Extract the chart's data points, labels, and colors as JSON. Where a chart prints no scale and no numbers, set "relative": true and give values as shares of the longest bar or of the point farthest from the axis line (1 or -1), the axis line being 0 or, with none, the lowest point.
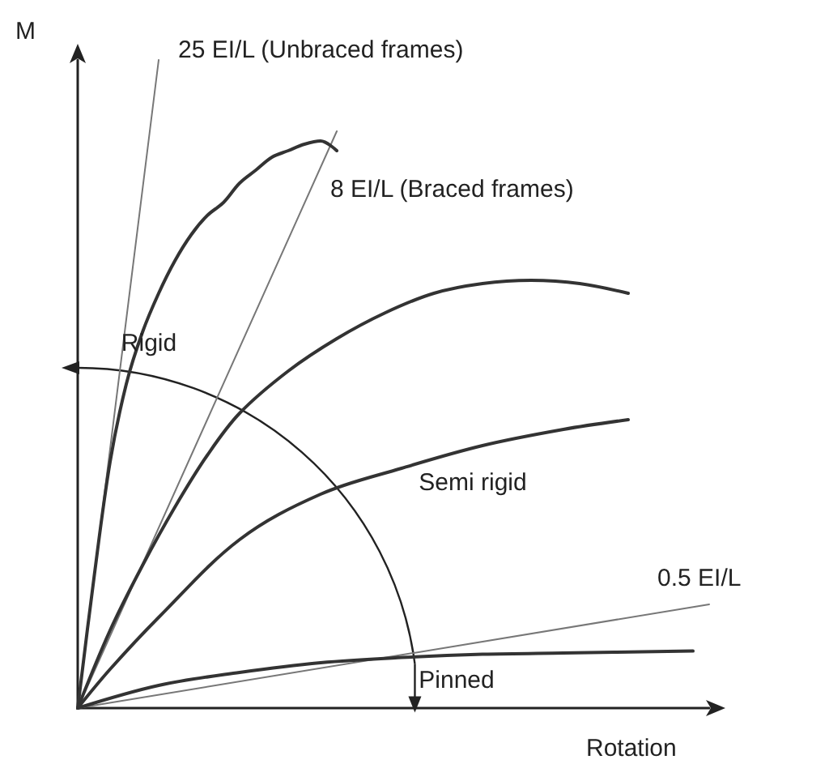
{
  "chart_data": {
    "type": "line",
    "relative": true,
    "xlabel": "Rotation",
    "ylabel": "M",
    "marker": "none",
    "grid": false,
    "legend": false,
    "categories": [
      null,
      null,
      null,
      null,
      null,
      null,
      null,
      null,
      null,
      null,
      null,
      null,
      null,
      null,
      null,
      null,
      null,
      null,
      null,
      null,
      null,
      null,
      null,
      null,
      null,
      null,
      null,
      null,
      null,
      null,
      null,
      null,
      null,
      null,
      null,
      null,
      null,
      null,
      null,
      null
    ],
    "series": [
      {
        "name": "25 EI/L (Unbraced frames)",
        "color": "#777777",
        "values": [
          0,
          null,
          null,
          null,
          null,
          1,
          null,
          null,
          null,
          null,
          null,
          null,
          null,
          null,
          null,
          null,
          null,
          null,
          null,
          null,
          null,
          null,
          null,
          null,
          null,
          null,
          null,
          null,
          null,
          null,
          null,
          null,
          null,
          null,
          null,
          null,
          null,
          null,
          null,
          null
        ]
      },
      {
        "name": "8 EI/L (Braced frames)",
        "color": "#777777",
        "values": [
          0,
          null,
          null,
          null,
          null,
          null,
          null,
          null,
          null,
          null,
          null,
          null,
          null,
          null,
          null,
          null,
          0.89,
          null,
          null,
          null,
          null,
          null,
          null,
          null,
          null,
          null,
          null,
          null,
          null,
          null,
          null,
          null,
          null,
          null,
          null,
          null,
          null,
          null,
          null,
          null
        ]
      },
      {
        "name": "0.5 EI/L",
        "color": "#777777",
        "values": [
          0,
          null,
          null,
          null,
          null,
          null,
          null,
          null,
          null,
          null,
          null,
          null,
          null,
          null,
          null,
          null,
          null,
          null,
          null,
          null,
          null,
          null,
          null,
          null,
          null,
          null,
          null,
          null,
          null,
          null,
          null,
          null,
          null,
          null,
          null,
          null,
          null,
          null,
          null,
          0.16
        ]
      },
      {
        "color": "#333333",
        "values": [
          0,
          0.2,
          0.38,
          0.5,
          0.58,
          0.64,
          0.69,
          0.73,
          0.76,
          0.78,
          0.81,
          0.83,
          0.85,
          0.86,
          0.87,
          0.875,
          0.86,
          null,
          null,
          null,
          null,
          null,
          null,
          null,
          null,
          null,
          null,
          null,
          null,
          null,
          null,
          null,
          null,
          null,
          null,
          null,
          null,
          null,
          null,
          null
        ]
      },
      {
        "color": "#333333",
        "values": [
          0,
          null,
          0.12,
          null,
          0.22,
          null,
          0.31,
          null,
          0.39,
          null,
          0.455,
          null,
          null,
          0.52,
          null,
          null,
          0.57,
          null,
          null,
          0.61,
          null,
          null,
          0.64,
          null,
          null,
          0.655,
          null,
          null,
          0.66,
          null,
          null,
          0.655,
          null,
          null,
          0.64,
          null,
          null,
          null,
          null,
          null
        ]
      },
      {
        "color": "#333333",
        "values": [
          0,
          null,
          0.06,
          null,
          null,
          0.14,
          null,
          null,
          null,
          null,
          0.26,
          null,
          null,
          null,
          null,
          0.33,
          null,
          null,
          null,
          null,
          0.37,
          null,
          null,
          null,
          null,
          0.405,
          null,
          null,
          null,
          null,
          0.43,
          null,
          null,
          null,
          0.445,
          null,
          null,
          null,
          null,
          null
        ]
      },
      {
        "color": "#333333",
        "values": [
          0,
          null,
          null,
          null,
          null,
          0.035,
          null,
          null,
          null,
          null,
          0.055,
          null,
          null,
          null,
          null,
          0.07,
          null,
          null,
          null,
          null,
          0.078,
          null,
          null,
          null,
          null,
          0.083,
          null,
          null,
          null,
          null,
          0.085,
          null,
          null,
          null,
          null,
          null,
          null,
          null,
          0.088,
          null
        ]
      }
    ],
    "annotations": [
      "Rigid",
      "Semi rigid",
      "Pinned"
    ]
  }
}
